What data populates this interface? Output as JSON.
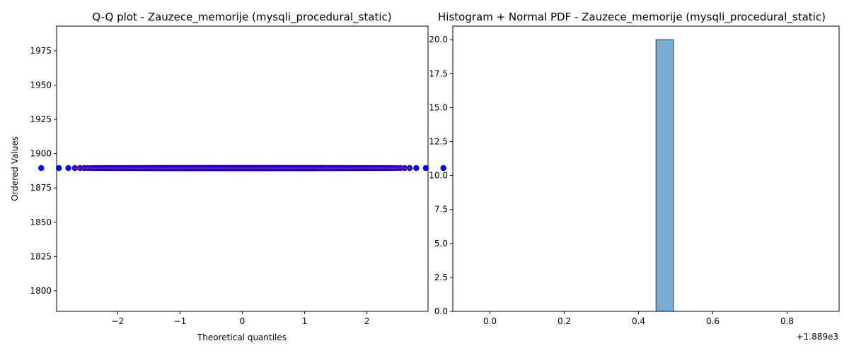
{
  "chart_data": [
    {
      "type": "scatter",
      "title": "Q-Q plot - Zauzece_memorije (mysqli_procedural_static)",
      "xlabel": "Theoretical quantiles",
      "ylabel": "Ordered Values",
      "xlim": [
        -2.98,
        2.98
      ],
      "ylim": [
        1785,
        1993
      ],
      "xticks": [
        -2,
        -1,
        0,
        1,
        2
      ],
      "xtick_labels": [
        "−2",
        "−1",
        "0",
        "1",
        "2"
      ],
      "yticks": [
        1800,
        1825,
        1850,
        1875,
        1900,
        1925,
        1950,
        1975
      ],
      "ytick_labels": [
        "1800",
        "1825",
        "1850",
        "1875",
        "1900",
        "1925",
        "1950",
        "1975"
      ],
      "n_points": 1000,
      "constant_value": 1889.47,
      "fit_line": {
        "x": [
          -2.71,
          2.71
        ],
        "y": [
          1889.47,
          1889.47
        ]
      },
      "colors": {
        "points": "#0000ff",
        "line": "#ff0000"
      },
      "grid": false
    },
    {
      "type": "bar",
      "title": "Histogram + Normal PDF - Zauzece_memorije (mysqli_procedural_static)",
      "xlabel": "",
      "ylabel": "",
      "x_offset_label": "+1.889e3",
      "xlim": [
        -0.1,
        0.94
      ],
      "ylim": [
        0,
        21
      ],
      "xticks": [
        0.0,
        0.2,
        0.4,
        0.6,
        0.8
      ],
      "xtick_labels": [
        "0.0",
        "0.2",
        "0.4",
        "0.6",
        "0.8"
      ],
      "yticks": [
        0,
        2.5,
        5,
        7.5,
        10,
        12.5,
        15,
        17.5,
        20
      ],
      "ytick_labels": [
        "0.0",
        "2.5",
        "5.0",
        "7.5",
        "10.0",
        "12.5",
        "15.0",
        "17.5",
        "20.0"
      ],
      "bins": [
        {
          "x0": 0.447,
          "x1": 0.494,
          "count": 20
        }
      ],
      "colors": {
        "bar": "#78aed4",
        "edge": "#333333"
      },
      "grid": false
    }
  ]
}
